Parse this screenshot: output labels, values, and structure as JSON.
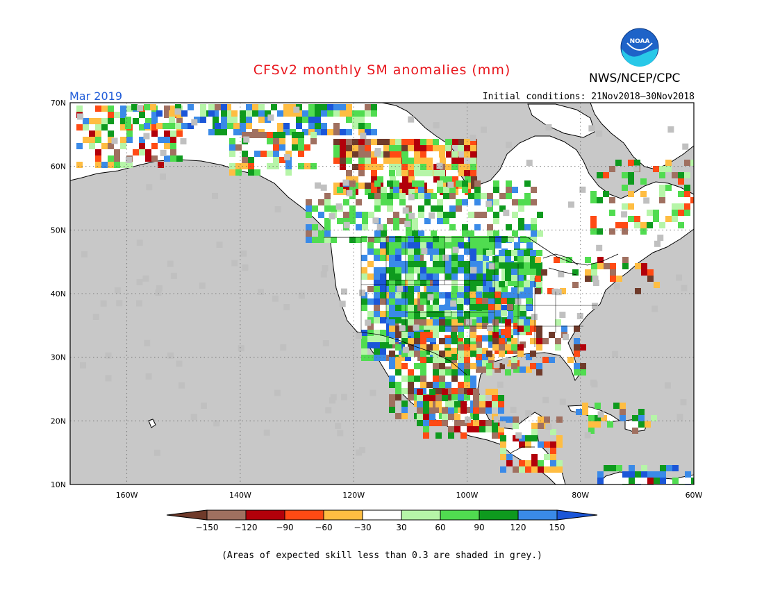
{
  "title": "CFSv2 monthly SM anomalies (mm)",
  "agency": "NWS/NCEP/CPC",
  "logo_text": "NOAA",
  "valid_month": "Mar 2019",
  "initial_conditions": "Initial conditions: 21Nov2018–30Nov2018",
  "footnote": "(Areas of expected skill less than 0.3 are shaded in grey.)",
  "map": {
    "lat_labels": [
      "70N",
      "60N",
      "50N",
      "40N",
      "30N",
      "20N",
      "10N"
    ],
    "lon_labels": [
      "160W",
      "140W",
      "120W",
      "100W",
      "80W",
      "60W"
    ],
    "lat_range": [
      10,
      70
    ],
    "lon_range": [
      -170,
      -60
    ],
    "ocean_color": "#c8c8c8",
    "land_color": "#ffffff"
  },
  "colorbar": {
    "labels": [
      "−150",
      "−120",
      "−90",
      "−60",
      "−30",
      "30",
      "60",
      "90",
      "120",
      "150"
    ],
    "colors": [
      "#6f3a2a",
      "#a07060",
      "#b2000a",
      "#ff4a14",
      "#ffbd42",
      "#ffffff",
      "#b6f5a8",
      "#50dc50",
      "#0e9a1e",
      "#3a8ae8",
      "#1b56d8"
    ]
  }
}
